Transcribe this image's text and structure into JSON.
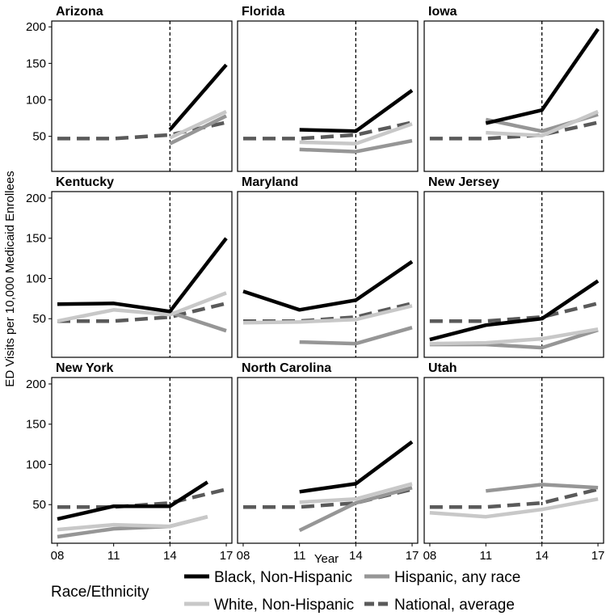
{
  "chart_data": {
    "type": "line",
    "ylabel": "ED Visits per 10,000 Medicaid Enrollees",
    "xlabel": "Year",
    "x_ticks": [
      8,
      11,
      14,
      17
    ],
    "x_tick_labels": [
      "08",
      "11",
      "14",
      "17"
    ],
    "y_ticks": [
      50,
      100,
      150,
      200
    ],
    "y_tick_labels": [
      "50",
      "100",
      "150",
      "200"
    ],
    "xlim": [
      7.7,
      17.3
    ],
    "ylim": [
      2,
      208
    ],
    "reference_year": 14,
    "legend": {
      "title": "Race/Ethnicity",
      "placement": "bottom",
      "entries": [
        {
          "key": "black",
          "label": "Black, Non-Hispanic"
        },
        {
          "key": "hispanic",
          "label": "Hispanic, any race"
        },
        {
          "key": "white",
          "label": "White, Non-Hispanic"
        },
        {
          "key": "national",
          "label": "National, average"
        }
      ]
    },
    "series_styles": {
      "black": {
        "color": "#000000",
        "dashed": false
      },
      "white": {
        "color": "#c8c8c8",
        "dashed": false
      },
      "hispanic": {
        "color": "#969696",
        "dashed": false
      },
      "national": {
        "color": "#5a5a5a",
        "dashed": true
      }
    },
    "national_average": {
      "x": [
        8,
        11,
        14,
        17
      ],
      "y": [
        47,
        47,
        52,
        69
      ]
    },
    "panels": [
      {
        "title": "Arizona",
        "series": {
          "black": {
            "x": [
              14,
              17
            ],
            "y": [
              59,
              148
            ]
          },
          "white": {
            "x": [
              14,
              17
            ],
            "y": [
              48,
              84
            ]
          },
          "hispanic": {
            "x": [
              14,
              17
            ],
            "y": [
              40,
              78
            ]
          }
        }
      },
      {
        "title": "Florida",
        "series": {
          "black": {
            "x": [
              11,
              14,
              17
            ],
            "y": [
              59,
              57,
              113
            ]
          },
          "white": {
            "x": [
              11,
              14,
              17
            ],
            "y": [
              42,
              40,
              67
            ]
          },
          "hispanic": {
            "x": [
              11,
              14,
              17
            ],
            "y": [
              32,
              29,
              44
            ]
          }
        }
      },
      {
        "title": "Iowa",
        "series": {
          "black": {
            "x": [
              11,
              14,
              17
            ],
            "y": [
              68,
              86,
              197
            ]
          },
          "white": {
            "x": [
              11,
              14,
              17
            ],
            "y": [
              55,
              51,
              84
            ]
          },
          "hispanic": {
            "x": [
              11,
              14,
              17
            ],
            "y": [
              73,
              57,
              80
            ]
          }
        }
      },
      {
        "title": "Kentucky",
        "series": {
          "black": {
            "x": [
              8,
              11,
              14,
              17
            ],
            "y": [
              68,
              69,
              59,
              150
            ]
          },
          "white": {
            "x": [
              8,
              11,
              14,
              17
            ],
            "y": [
              47,
              61,
              55,
              82
            ]
          },
          "hispanic": {
            "x": [
              14,
              17
            ],
            "y": [
              58,
              35
            ]
          }
        }
      },
      {
        "title": "Maryland",
        "series": {
          "black": {
            "x": [
              8,
              11,
              14,
              17
            ],
            "y": [
              84,
              61,
              73,
              121
            ]
          },
          "white": {
            "x": [
              8,
              11,
              14,
              17
            ],
            "y": [
              45,
              46,
              49,
              66
            ]
          },
          "hispanic": {
            "x": [
              11,
              14,
              17
            ],
            "y": [
              21,
              19,
              39
            ]
          }
        }
      },
      {
        "title": "New Jersey",
        "series": {
          "black": {
            "x": [
              8,
              11,
              14,
              17
            ],
            "y": [
              24,
              42,
              50,
              97
            ]
          },
          "white": {
            "x": [
              8,
              11,
              14,
              17
            ],
            "y": [
              19,
              20,
              25,
              37
            ]
          },
          "hispanic": {
            "x": [
              8,
              11,
              14,
              17
            ],
            "y": [
              18,
              18,
              14,
              36
            ]
          }
        }
      },
      {
        "title": "New York",
        "series": {
          "black": {
            "x": [
              8,
              11,
              14,
              16
            ],
            "y": [
              32,
              48,
              48,
              78
            ]
          },
          "white": {
            "x": [
              8,
              11,
              14,
              16
            ],
            "y": [
              19,
              25,
              23,
              35
            ]
          },
          "hispanic": {
            "x": [
              8,
              11,
              14,
              16
            ],
            "y": [
              10,
              20,
              23,
              35
            ]
          }
        }
      },
      {
        "title": "North Carolina",
        "series": {
          "black": {
            "x": [
              11,
              14,
              17
            ],
            "y": [
              66,
              76,
              128
            ]
          },
          "white": {
            "x": [
              11,
              14,
              17
            ],
            "y": [
              53,
              57,
              76
            ]
          },
          "hispanic": {
            "x": [
              11,
              14,
              17
            ],
            "y": [
              18,
              52,
              71
            ]
          }
        }
      },
      {
        "title": "Utah",
        "series": {
          "white": {
            "x": [
              8,
              11,
              14,
              17
            ],
            "y": [
              40,
              35,
              44,
              57
            ]
          },
          "hispanic": {
            "x": [
              11,
              14,
              17
            ],
            "y": [
              67,
              75,
              71
            ]
          }
        }
      }
    ]
  }
}
